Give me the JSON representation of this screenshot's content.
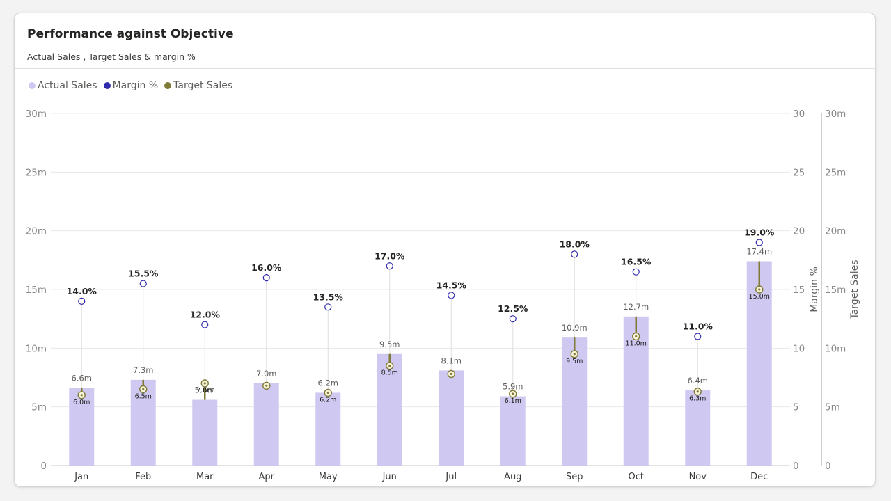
{
  "card": {
    "title": "Performance against Objective",
    "subtitle": "Actual Sales , Target Sales  & margin %"
  },
  "legend": [
    {
      "label": "Actual Sales",
      "color": "#cfc9f1"
    },
    {
      "label": "Margin %",
      "color": "#2f2aad"
    },
    {
      "label": "Target Sales",
      "color": "#7f7a35"
    }
  ],
  "chart_data": {
    "type": "bar",
    "categories": [
      "Jan",
      "Feb",
      "Mar",
      "Apr",
      "May",
      "Jun",
      "Jul",
      "Aug",
      "Sep",
      "Oct",
      "Nov",
      "Dec"
    ],
    "series": [
      {
        "name": "Actual Sales",
        "type": "bar",
        "axis": "left",
        "color": "#cfc9f1",
        "values": [
          6.6,
          7.3,
          5.6,
          7.0,
          6.2,
          9.5,
          8.1,
          5.9,
          10.9,
          12.7,
          6.4,
          17.4
        ],
        "labels": [
          "6.6m",
          "7.3m",
          "5.6m",
          "7.0m",
          "6.2m",
          "9.5m",
          "8.1m",
          "5.9m",
          "10.9m",
          "12.7m",
          "6.4m",
          "17.4m"
        ]
      },
      {
        "name": "Margin %",
        "type": "scatter",
        "axis": "right",
        "color": "#2f2aad",
        "values": [
          14.0,
          15.5,
          12.0,
          16.0,
          13.5,
          17.0,
          14.5,
          12.5,
          18.0,
          16.5,
          11.0,
          19.0
        ],
        "labels": [
          "14.0%",
          "15.5%",
          "12.0%",
          "16.0%",
          "13.5%",
          "17.0%",
          "14.5%",
          "12.5%",
          "18.0%",
          "16.5%",
          "11.0%",
          "19.0%"
        ]
      },
      {
        "name": "Target Sales",
        "type": "scatter",
        "axis": "right2",
        "color": "#7f7a35",
        "values": [
          6.0,
          6.5,
          7.0,
          6.8,
          6.2,
          8.5,
          7.8,
          6.1,
          9.5,
          11.0,
          6.3,
          15.0
        ],
        "labels": [
          "6.0m",
          "6.5m",
          "7.0m",
          "",
          "6.2m",
          "8.5m",
          "",
          "6.1m",
          "9.5m",
          "11.0m",
          "6.3m",
          "15.0m"
        ]
      }
    ],
    "y_left": {
      "ticks": [
        "0",
        "5m",
        "10m",
        "15m",
        "20m",
        "25m",
        "30m"
      ],
      "ylim": [
        0,
        30
      ]
    },
    "y_right": {
      "label": "Margin %",
      "ticks": [
        "0",
        "5",
        "10",
        "15",
        "20",
        "25",
        "30"
      ],
      "ylim": [
        0,
        30
      ]
    },
    "y_right2": {
      "label": "Target Sales",
      "ticks": [
        "0",
        "5m",
        "10m",
        "15m",
        "20m",
        "25m",
        "30m"
      ],
      "ylim": [
        0,
        30
      ]
    },
    "grid": true,
    "legend_position": "top-left"
  }
}
